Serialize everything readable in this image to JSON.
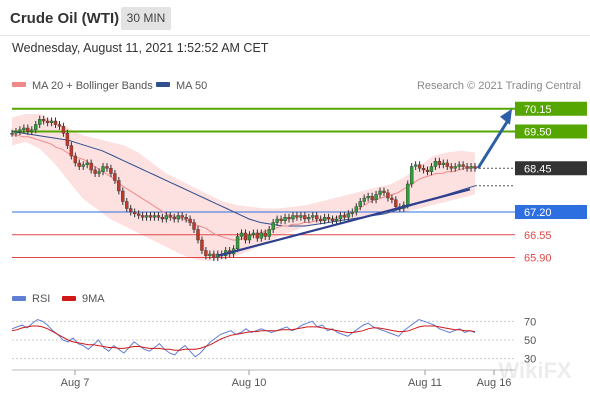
{
  "header": {
    "title": "Crude Oil (WTI)",
    "timeframe": "30 MIN",
    "datetime": "Wednesday, August 11, 2021 1:52:52 AM CET"
  },
  "legend": {
    "ma20": "MA 20 + Bollinger Bands",
    "ma50": "MA 50",
    "credit": "Research © 2021 Trading Central",
    "rsi": "RSI",
    "ma9": "9MA"
  },
  "colors": {
    "ma20": "#f08a8a",
    "ma50": "#2f4f8f",
    "band": "#fde0e0",
    "up": "#2f9e3a",
    "down": "#c0392b",
    "green_level": "#55a600",
    "blue_level": "#2d6fe0",
    "red_level": "#e04848",
    "current_price": "#333333",
    "trend": "#2e3f8f",
    "arrow": "#2c5ea8",
    "rsi": "#5f7fd6",
    "ma9": "#d01818"
  },
  "chart_data": [
    {
      "type": "candlestick",
      "title": "Crude Oil (WTI)",
      "ylim": [
        65.4,
        70.4
      ],
      "x_ticks": [
        "Aug 7",
        "Aug 10",
        "Aug 11",
        "Aug 16"
      ],
      "levels": [
        {
          "value": 70.15,
          "label": "70.15",
          "kind": "green",
          "filled": true
        },
        {
          "value": 69.5,
          "label": "69.50",
          "kind": "green",
          "filled": true
        },
        {
          "value": 68.45,
          "label": "68.45",
          "kind": "current",
          "filled": true
        },
        {
          "value": 67.2,
          "label": "67.20",
          "kind": "blue",
          "filled": true
        },
        {
          "value": 66.55,
          "label": "66.55",
          "kind": "red",
          "filled": false
        },
        {
          "value": 65.9,
          "label": "65.90",
          "kind": "red",
          "filled": false
        }
      ],
      "closes": [
        69.45,
        69.5,
        69.55,
        69.6,
        69.5,
        69.55,
        69.7,
        69.85,
        69.8,
        69.75,
        69.8,
        69.7,
        69.65,
        69.45,
        69.1,
        68.8,
        68.6,
        68.5,
        68.55,
        68.6,
        68.4,
        68.3,
        68.35,
        68.5,
        68.45,
        68.3,
        68.1,
        67.8,
        67.5,
        67.3,
        67.2,
        67.15,
        67.1,
        67.05,
        67.1,
        67.05,
        67.1,
        67.05,
        67.0,
        67.1,
        67.05,
        67.0,
        67.1,
        67.05,
        67.0,
        66.9,
        66.7,
        66.4,
        66.1,
        65.95,
        66.0,
        65.9,
        66.0,
        65.95,
        66.1,
        66.0,
        66.15,
        66.5,
        66.6,
        66.4,
        66.55,
        66.6,
        66.45,
        66.6,
        66.5,
        66.7,
        66.9,
        67.0,
        66.95,
        67.05,
        67.0,
        67.1,
        67.05,
        67.1,
        67.0,
        67.05,
        67.1,
        67.0,
        66.95,
        67.05,
        67.0,
        66.95,
        67.0,
        67.1,
        67.05,
        67.15,
        67.2,
        67.35,
        67.5,
        67.6,
        67.65,
        67.55,
        67.7,
        67.8,
        67.75,
        67.6,
        67.55,
        67.35,
        67.3,
        67.4,
        68.0,
        68.5,
        68.55,
        68.45,
        68.4,
        68.35,
        68.5,
        68.65,
        68.55,
        68.6,
        68.5,
        68.45,
        68.5,
        68.55,
        68.5,
        68.45,
        68.5,
        68.45
      ],
      "ma20": [
        69.4,
        69.4,
        69.35,
        69.35,
        69.3,
        69.25,
        69.2,
        69.15,
        69.05,
        69.0,
        68.9,
        68.8,
        68.75,
        68.7,
        68.6,
        68.5,
        68.4,
        68.3,
        68.2,
        68.05,
        67.95,
        67.85,
        67.75,
        67.65,
        67.55,
        67.45,
        67.35,
        67.25,
        67.15,
        67.1,
        67.05,
        67.0,
        66.95,
        66.85,
        66.8,
        66.75,
        66.65,
        66.55,
        66.5,
        66.45,
        66.4,
        66.4,
        66.45,
        66.5,
        66.55,
        66.6,
        66.65,
        66.7,
        66.75,
        66.8,
        66.8,
        66.85,
        66.85,
        66.9,
        66.9,
        66.95,
        66.95,
        67.0,
        67.0,
        67.05,
        67.1,
        67.15,
        67.2,
        67.3,
        67.4,
        67.5,
        67.55,
        67.6,
        67.65,
        67.7,
        67.75,
        67.85,
        67.95,
        68.05,
        68.15,
        68.2,
        68.25,
        68.3,
        68.3,
        68.35,
        68.35,
        68.4,
        68.45,
        68.45,
        68.5
      ],
      "ma50": [
        69.5,
        69.45,
        69.4,
        69.35,
        69.3,
        69.25,
        69.15,
        69.05,
        68.95,
        68.8,
        68.65,
        68.5,
        68.35,
        68.2,
        68.05,
        67.9,
        67.75,
        67.6,
        67.45,
        67.3,
        67.15,
        67.0,
        66.9,
        66.85,
        66.8,
        66.8,
        66.8,
        66.85,
        66.9,
        66.95,
        67.0,
        67.05,
        67.1,
        67.15,
        67.25,
        67.35,
        67.45,
        67.55,
        67.65,
        67.75,
        67.85,
        67.95
      ],
      "band_upper": [
        69.9,
        70.0,
        70.0,
        69.8,
        69.6,
        69.4,
        69.3,
        69.2,
        69.1,
        68.9,
        68.6,
        68.3,
        68.1,
        67.9,
        67.7,
        67.5,
        67.4,
        67.35,
        67.3,
        67.3,
        67.35,
        67.4,
        67.5,
        67.6,
        67.7,
        67.8,
        67.9,
        68.0,
        68.2,
        68.5,
        68.8,
        68.9,
        68.95,
        68.9
      ],
      "band_lower": [
        69.1,
        69.2,
        69.0,
        68.6,
        68.1,
        67.6,
        67.3,
        67.0,
        66.8,
        66.6,
        66.4,
        66.2,
        66.0,
        65.85,
        65.8,
        65.85,
        65.95,
        66.1,
        66.3,
        66.5,
        66.65,
        66.8,
        66.9,
        66.95,
        67.0,
        67.05,
        67.1,
        67.15,
        67.2,
        67.3,
        67.4,
        67.5,
        67.6,
        67.7
      ],
      "trendline": {
        "start": 65.95,
        "end": 67.85
      },
      "projection": {
        "from": 68.45,
        "to": 70.15
      }
    },
    {
      "type": "line",
      "series": [
        {
          "name": "RSI",
          "values": [
            62,
            64,
            66,
            63,
            68,
            72,
            70,
            66,
            60,
            56,
            50,
            48,
            52,
            46,
            44,
            40,
            45,
            50,
            42,
            38,
            44,
            40,
            36,
            42,
            48,
            44,
            40,
            38,
            42,
            46,
            40,
            36,
            34,
            40,
            44,
            38,
            32,
            36,
            42,
            48,
            52,
            56,
            58,
            60,
            56,
            58,
            62,
            58,
            60,
            62,
            60,
            58,
            60,
            62,
            64,
            60,
            62,
            66,
            68,
            70,
            64,
            66,
            60,
            62,
            58,
            56,
            54,
            58,
            62,
            66,
            68,
            64,
            62,
            60,
            58,
            56,
            54,
            60,
            64,
            68,
            72,
            70,
            68,
            66,
            62,
            60,
            58,
            60,
            62,
            58,
            60,
            58
          ]
        },
        {
          "name": "9MA",
          "values": [
            60,
            61,
            63,
            64,
            65,
            65,
            64,
            62,
            59,
            56,
            53,
            50,
            48,
            47,
            46,
            45,
            45,
            44,
            43,
            42,
            42,
            41,
            41,
            42,
            43,
            43,
            42,
            41,
            41,
            41,
            40,
            40,
            39,
            39,
            40,
            40,
            40,
            41,
            43,
            45,
            48,
            51,
            53,
            55,
            56,
            57,
            58,
            59,
            59,
            60,
            60,
            60,
            60,
            61,
            61,
            61,
            62,
            63,
            64,
            64,
            64,
            63,
            62,
            61,
            60,
            59,
            58,
            58,
            59,
            60,
            62,
            63,
            63,
            62,
            61,
            60,
            59,
            59,
            60,
            62,
            64,
            65,
            65,
            65,
            64,
            63,
            62,
            61,
            61,
            60,
            60,
            59
          ]
        }
      ],
      "ylim": [
        20,
        80
      ],
      "y_ticks": [
        "70",
        "50",
        "30"
      ],
      "x_ticks": [
        "Aug 7",
        "Aug 10",
        "Aug 11",
        "Aug 16"
      ]
    }
  ]
}
